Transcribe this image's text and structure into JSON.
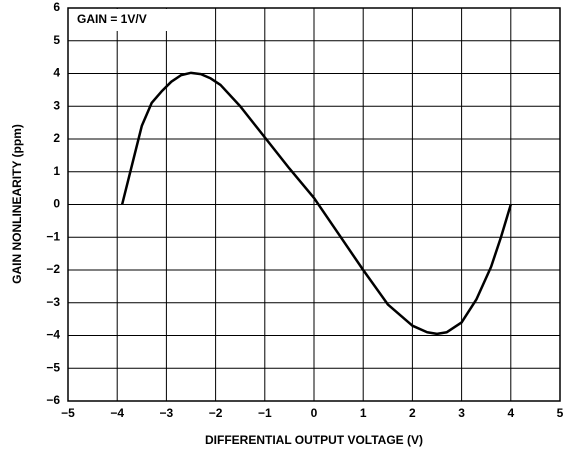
{
  "chart_data": {
    "type": "line",
    "annotation": "GAIN = 1V/V",
    "xlabel": "DIFFERENTIAL OUTPUT VOLTAGE (V)",
    "ylabel": "GAIN NONLINEARITY (ppm)",
    "x": [
      -3.9,
      -3.7,
      -3.5,
      -3.3,
      -3.1,
      -2.9,
      -2.7,
      -2.5,
      -2.3,
      -2.1,
      -1.9,
      -1.5,
      -1,
      -0.5,
      0,
      0.5,
      1,
      1.5,
      2,
      2.3,
      2.5,
      2.7,
      3,
      3.3,
      3.6,
      3.8,
      4
    ],
    "series": [
      {
        "name": "Gain nonlinearity",
        "color": "#000000",
        "values": [
          0,
          1.2,
          2.4,
          3.1,
          3.45,
          3.75,
          3.95,
          4.02,
          3.98,
          3.85,
          3.65,
          3.0,
          2.05,
          1.1,
          0.2,
          -0.9,
          -2.0,
          -3.05,
          -3.7,
          -3.9,
          -3.95,
          -3.9,
          -3.6,
          -2.9,
          -1.9,
          -1.0,
          0
        ]
      }
    ],
    "xlim": [
      -5,
      5
    ],
    "xticks": [
      {
        "value": -5,
        "label": "−5"
      },
      {
        "value": -4,
        "label": "−4"
      },
      {
        "value": -3,
        "label": "−3"
      },
      {
        "value": -2,
        "label": "−2"
      },
      {
        "value": -1,
        "label": "−1"
      },
      0,
      1,
      2,
      3,
      4,
      5
    ],
    "ylim": [
      -6,
      6
    ],
    "yticks": [
      {
        "value": -6,
        "label": "−6"
      },
      {
        "value": -5,
        "label": "−5"
      },
      {
        "value": -4,
        "label": "−4"
      },
      {
        "value": -3,
        "label": "−3"
      },
      {
        "value": -2,
        "label": "−2"
      },
      {
        "value": -1,
        "label": "−1"
      },
      0,
      1,
      2,
      3,
      4,
      5,
      6
    ],
    "grid": true
  }
}
